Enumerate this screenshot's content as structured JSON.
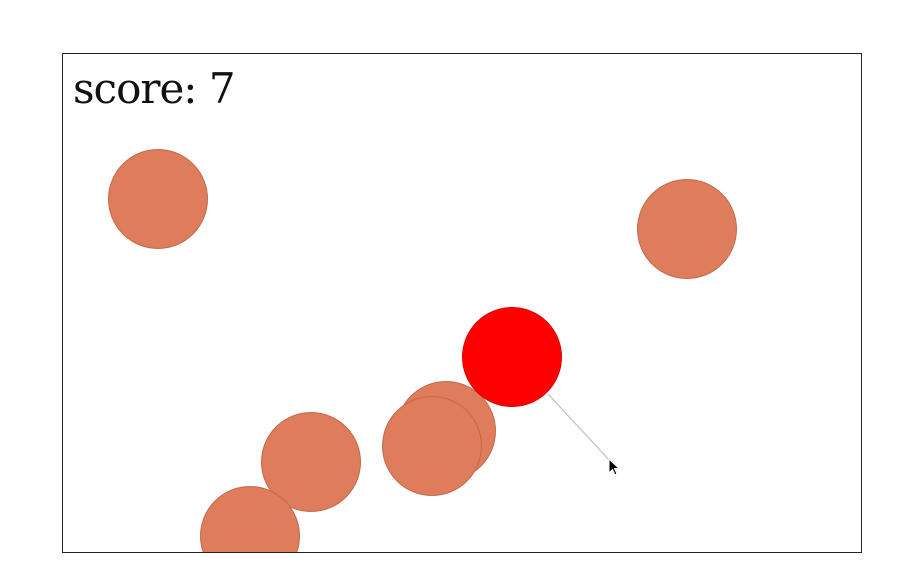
{
  "game": {
    "score_label": "score:",
    "score_value": "7",
    "colors": {
      "enemy": "#df7c5c",
      "player": "#ff0000",
      "aim_line": "#b8bfd0",
      "border": "#222222"
    },
    "enemy_count": 6
  }
}
